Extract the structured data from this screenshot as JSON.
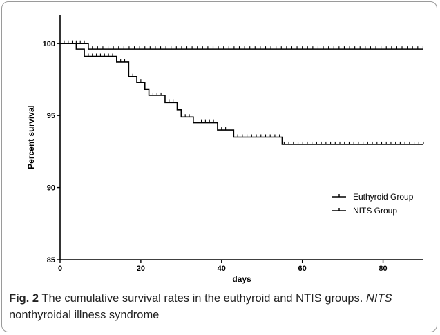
{
  "chart_data": {
    "type": "line",
    "step": true,
    "xlabel": "days",
    "ylabel": "Percent survival",
    "xlim": [
      0,
      90
    ],
    "ylim": [
      85,
      102
    ],
    "x_ticks": [
      0,
      20,
      40,
      60,
      80
    ],
    "y_ticks": [
      85,
      90,
      95,
      100
    ],
    "grid": false,
    "legend_position": "right",
    "series": [
      {
        "name": "Euthyroid Group",
        "steps": [
          [
            0,
            100
          ],
          [
            7,
            99.6
          ],
          [
            90,
            99.6
          ]
        ],
        "censor_ticks": [
          1,
          2,
          3,
          4,
          5,
          6
        ],
        "censor_dense": [
          8,
          90,
          1.3
        ]
      },
      {
        "name": "NITS Group",
        "steps": [
          [
            0,
            100
          ],
          [
            4,
            99.6
          ],
          [
            6,
            99.1
          ],
          [
            14,
            98.7
          ],
          [
            17,
            97.7
          ],
          [
            19,
            97.3
          ],
          [
            21,
            96.8
          ],
          [
            22,
            96.4
          ],
          [
            26,
            95.9
          ],
          [
            29,
            95.4
          ],
          [
            30,
            94.9
          ],
          [
            33,
            94.5
          ],
          [
            39,
            94.0
          ],
          [
            43,
            93.5
          ],
          [
            55,
            93.0
          ],
          [
            90,
            93.0
          ]
        ],
        "censor_ticks": [
          1,
          2,
          3,
          7,
          8,
          9,
          10,
          11,
          12,
          13,
          15,
          16,
          18,
          20,
          23,
          24,
          25,
          27,
          28,
          31,
          32,
          35,
          36,
          37,
          38,
          40,
          41
        ],
        "censor_dense": [
          44,
          90,
          1.15
        ]
      }
    ]
  },
  "caption": {
    "fig_label": "Fig. 2",
    "text_a": "The cumulative survival rates in the euthyroid and NTIS groups. ",
    "abbr": "NITS",
    "text_b": " nonthyroidal illness syndrome"
  }
}
